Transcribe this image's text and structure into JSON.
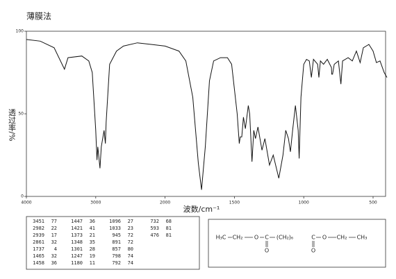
{
  "chart_data": {
    "type": "line",
    "title": "薄膜法",
    "x_label": "波数/cm⁻¹",
    "y_label": "透过率/%",
    "color": "#111111",
    "xlim": [
      4000,
      400
    ],
    "xticks": [
      4000,
      3000,
      2000,
      1500,
      1000,
      500
    ],
    "ylim": [
      0,
      100
    ],
    "yticks": [
      0,
      50,
      100
    ],
    "x": [
      4000,
      3800,
      3600,
      3451,
      3400,
      3200,
      3100,
      3050,
      3000,
      2982,
      2970,
      2939,
      2920,
      2880,
      2861,
      2850,
      2800,
      2700,
      2600,
      2400,
      2200,
      2000,
      1900,
      1850,
      1800,
      1760,
      1737,
      1710,
      1680,
      1650,
      1600,
      1550,
      1520,
      1500,
      1480,
      1465,
      1458,
      1447,
      1435,
      1421,
      1400,
      1390,
      1373,
      1360,
      1348,
      1330,
      1301,
      1280,
      1247,
      1220,
      1180,
      1150,
      1130,
      1110,
      1096,
      1080,
      1060,
      1040,
      1033,
      1020,
      1000,
      980,
      960,
      945,
      930,
      900,
      891,
      880,
      857,
      830,
      800,
      798,
      792,
      780,
      750,
      732,
      720,
      680,
      650,
      620,
      593,
      570,
      530,
      500,
      476,
      450,
      420,
      400
    ],
    "values": [
      95,
      94,
      90,
      77,
      84,
      85,
      82,
      75,
      40,
      22,
      30,
      17,
      30,
      40,
      32,
      45,
      80,
      88,
      91,
      93,
      92,
      91,
      88,
      82,
      60,
      20,
      4,
      30,
      70,
      82,
      84,
      84,
      80,
      65,
      50,
      32,
      36,
      36,
      48,
      41,
      55,
      50,
      21,
      40,
      35,
      42,
      28,
      35,
      19,
      25,
      11,
      25,
      40,
      35,
      27,
      40,
      55,
      40,
      23,
      60,
      80,
      83,
      82,
      72,
      83,
      80,
      72,
      82,
      80,
      83,
      78,
      74,
      74,
      80,
      82,
      68,
      82,
      84,
      82,
      88,
      81,
      90,
      92,
      88,
      81,
      82,
      75,
      72
    ]
  },
  "peak_table": {
    "rows": [
      [
        3451,
        77
      ],
      [
        2982,
        22
      ],
      [
        2939,
        17
      ],
      [
        2861,
        32
      ],
      [
        1737,
        4
      ],
      [
        1465,
        32
      ],
      [
        1458,
        36
      ],
      [
        1447,
        36
      ],
      [
        1421,
        41
      ],
      [
        1373,
        21
      ],
      [
        1348,
        35
      ],
      [
        1301,
        28
      ],
      [
        1247,
        19
      ],
      [
        1180,
        11
      ],
      [
        1096,
        27
      ],
      [
        1033,
        23
      ],
      [
        945,
        72
      ],
      [
        891,
        72
      ],
      [
        857,
        80
      ],
      [
        798,
        74
      ],
      [
        792,
        74
      ],
      [
        732,
        68
      ],
      [
        593,
        81
      ],
      [
        476,
        81
      ]
    ]
  },
  "structure": {
    "groups": [
      "H₃C",
      "CH₂",
      "O",
      "C",
      "(CH₂)₆",
      "C",
      "O",
      "CH₂",
      "CH₃"
    ],
    "carbonyl_oxygens": [
      "O",
      "O"
    ]
  }
}
